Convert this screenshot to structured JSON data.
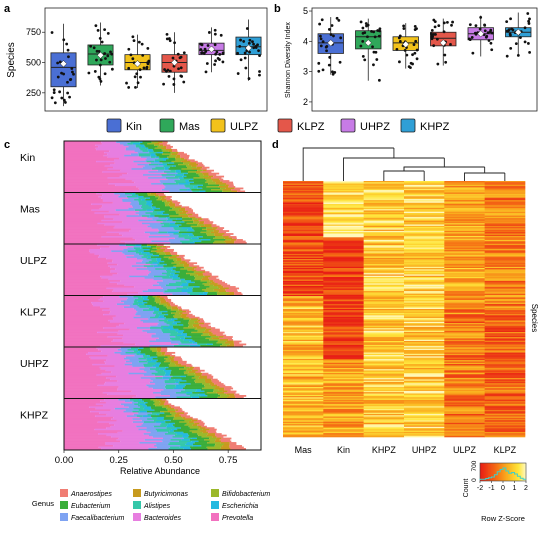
{
  "figure": {
    "panel_a_letter": "a",
    "panel_b_letter": "b",
    "panel_c_letter": "c",
    "panel_d_letter": "d"
  },
  "colors": {
    "Kin": "#4a6fd4",
    "Mas": "#2fa85a",
    "ULPZ": "#f2c21b",
    "KLPZ": "#e4574a",
    "UHPZ": "#c77be6",
    "KHPZ": "#2f9fd6",
    "Anaerostipes": "#f07d73",
    "Eubacterium": "#3aae3a",
    "Faecalibacterium": "#7ea3f2",
    "Butyricimonas": "#c79a1e",
    "Alistipes": "#34c7a9",
    "Bacteroides": "#e77ee0",
    "Bifidobacterium": "#9bb82a",
    "Escherichia": "#24b9e0",
    "Prevotella": "#f271bf"
  },
  "legend": {
    "groups": [
      "Kin",
      "Mas",
      "ULPZ",
      "KLPZ",
      "UHPZ",
      "KHPZ"
    ]
  },
  "panel_c": {
    "xlabel": "Relative Abundance",
    "legend_title": "Genus",
    "genera": [
      "Anaerostipes",
      "Butyricimonas",
      "Bifidobacterium",
      "Eubacterium",
      "Alistipes",
      "Escherichia",
      "Faecalibacterium",
      "Bacteroides",
      "Prevotella"
    ]
  },
  "panel_d": {
    "ylabel": "Species",
    "color_key_title": "Row Z-Score",
    "count_label": "Count",
    "count_ticks": [
      "0",
      "700"
    ]
  },
  "chart_data": [
    {
      "type": "box",
      "panel": "a",
      "ylabel": "Species",
      "categories": [
        "Kin",
        "Mas",
        "ULPZ",
        "KLPZ",
        "UHPZ",
        "KHPZ"
      ],
      "ylim": [
        100,
        950
      ],
      "yticks": [
        250,
        500,
        750
      ],
      "boxes": [
        {
          "group": "Kin",
          "min": 140,
          "q1": 300,
          "median": 460,
          "q3": 580,
          "max": 820,
          "mean": 490
        },
        {
          "group": "Mas",
          "min": 310,
          "q1": 480,
          "median": 570,
          "q3": 645,
          "max": 830,
          "mean": 560
        },
        {
          "group": "ULPZ",
          "min": 290,
          "q1": 440,
          "median": 500,
          "q3": 565,
          "max": 730,
          "mean": 490
        },
        {
          "group": "KLPZ",
          "min": 250,
          "q1": 420,
          "median": 500,
          "q3": 565,
          "max": 750,
          "mean": 500
        },
        {
          "group": "UHPZ",
          "min": 420,
          "q1": 565,
          "median": 600,
          "q3": 660,
          "max": 790,
          "mean": 610
        },
        {
          "group": "KHPZ",
          "min": 350,
          "q1": 565,
          "median": 630,
          "q3": 710,
          "max": 855,
          "mean": 620
        }
      ]
    },
    {
      "type": "box",
      "panel": "b",
      "ylabel": "Shannon Diversity Index",
      "categories": [
        "Kin",
        "Mas",
        "ULPZ",
        "KLPZ",
        "UHPZ",
        "KHPZ"
      ],
      "ylim": [
        1.7,
        5.1
      ],
      "yticks": [
        2,
        3,
        4,
        5
      ],
      "boxes": [
        {
          "group": "Kin",
          "min": 2.9,
          "q1": 3.6,
          "median": 3.95,
          "q3": 4.25,
          "max": 4.8,
          "mean": 3.95
        },
        {
          "group": "Mas",
          "min": 2.7,
          "q1": 3.75,
          "median": 4.15,
          "q3": 4.35,
          "max": 4.75,
          "mean": 3.95
        },
        {
          "group": "ULPZ",
          "min": 3.1,
          "q1": 3.7,
          "median": 3.95,
          "q3": 4.15,
          "max": 4.6,
          "mean": 3.9
        },
        {
          "group": "KLPZ",
          "min": 3.2,
          "q1": 3.85,
          "median": 4.1,
          "q3": 4.3,
          "max": 4.75,
          "mean": 3.95
        },
        {
          "group": "UHPZ",
          "min": 3.5,
          "q1": 4.05,
          "median": 4.25,
          "q3": 4.45,
          "max": 4.85,
          "mean": 4.25
        },
        {
          "group": "KHPZ",
          "min": 3.5,
          "q1": 4.15,
          "median": 4.3,
          "q3": 4.45,
          "max": 4.95,
          "mean": 4.3
        }
      ]
    },
    {
      "type": "area",
      "panel": "c",
      "xlabel": "Relative Abundance",
      "xlim": [
        0,
        0.9
      ],
      "xticks": [
        "0.00",
        "0.25",
        "0.50",
        "0.75"
      ],
      "groups": [
        "Kin",
        "Mas",
        "ULPZ",
        "KLPZ",
        "UHPZ",
        "KHPZ"
      ],
      "approx_total_range": [
        0.45,
        0.85
      ]
    },
    {
      "type": "heatmap",
      "panel": "d",
      "columns": [
        "Mas",
        "Kin",
        "KHPZ",
        "UHPZ",
        "ULPZ",
        "KLPZ"
      ],
      "ylabel": "Species",
      "zlim": [
        -2,
        2
      ],
      "zticks": [
        "-2",
        "-1",
        "0",
        "1",
        "2"
      ]
    }
  ]
}
